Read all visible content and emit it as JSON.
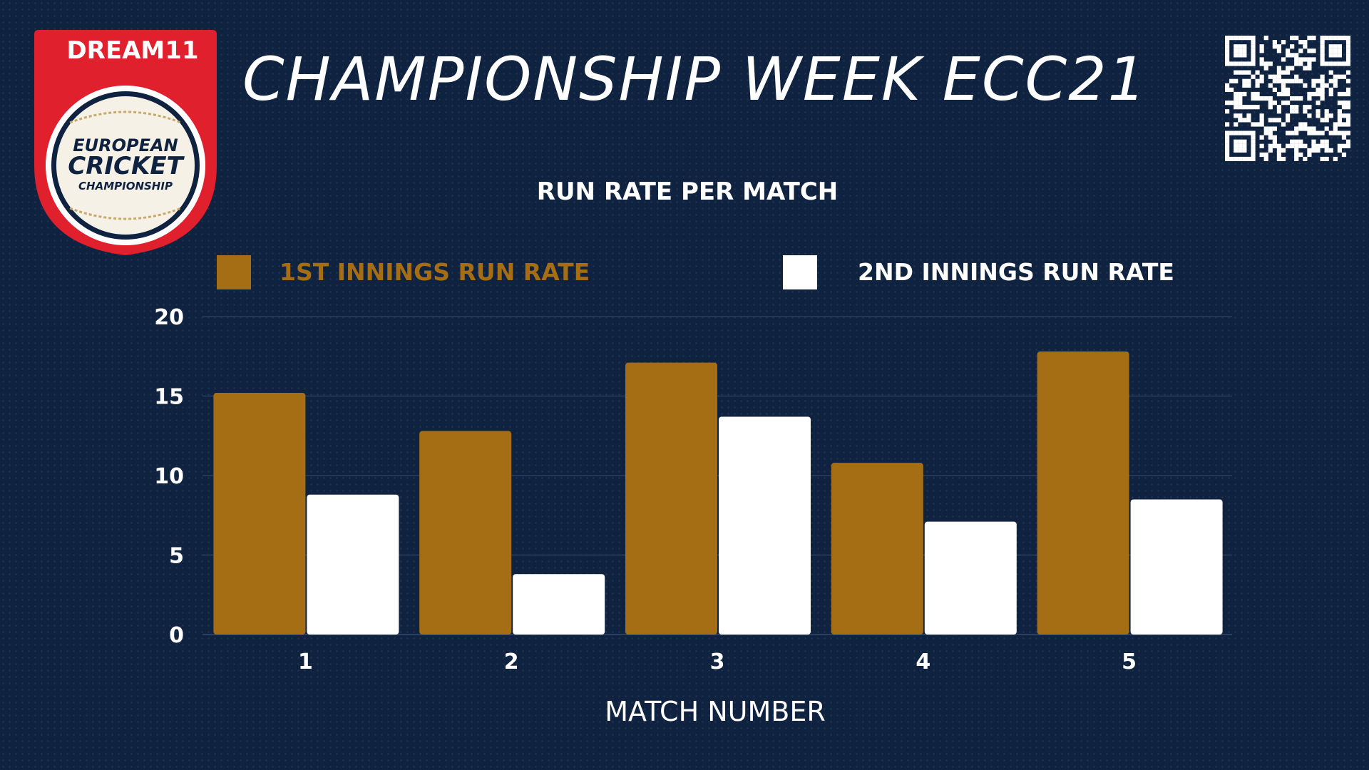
{
  "header": {
    "title": "CHAMPIONSHIP WEEK ECC21"
  },
  "logo": {
    "sponsor": "DREAM11",
    "line1": "EUROPEAN",
    "line2": "CRICKET",
    "line3": "CHAMPIONSHIP"
  },
  "qr_code": {
    "icon": "qr-code-icon"
  },
  "colors": {
    "background": "#0f2240",
    "series1": "#a56d14",
    "series2": "#ffffff",
    "grid": "#2a4061",
    "logo_red": "#e0202c"
  },
  "chart_data": {
    "type": "bar",
    "title": "RUN RATE PER MATCH",
    "xlabel": "MATCH NUMBER",
    "ylabel": "",
    "categories": [
      "1",
      "2",
      "3",
      "4",
      "5"
    ],
    "ylim": [
      0,
      20
    ],
    "yticks": [
      "0",
      "5",
      "10",
      "15",
      "20"
    ],
    "grid": true,
    "legend_position": "top",
    "series": [
      {
        "name": "1ST INNINGS RUN RATE",
        "color": "#a56d14",
        "values": [
          15.2,
          12.8,
          17.1,
          10.8,
          17.8
        ]
      },
      {
        "name": "2ND INNINGS RUN RATE",
        "color": "#ffffff",
        "values": [
          8.8,
          3.8,
          13.7,
          7.1,
          8.5
        ]
      }
    ]
  }
}
